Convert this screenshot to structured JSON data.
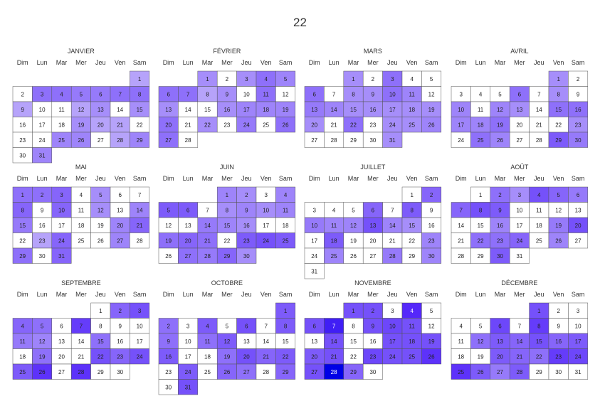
{
  "chart_data": {
    "type": "heatmap",
    "title": "22",
    "weekday_labels": [
      "Dim",
      "Lun",
      "Mar",
      "Mer",
      "Jeu",
      "Ven",
      "Sam"
    ],
    "color_scale": [
      "#ffffff",
      "#0000ee"
    ],
    "months": [
      {
        "name": "JANVIER",
        "first_weekday": 6,
        "days": 31,
        "levels": [
          0.2,
          0,
          0.45,
          0.45,
          0.4,
          0.4,
          0.45,
          0.45,
          0.2,
          0,
          0,
          0.2,
          0.3,
          0,
          0.3,
          0,
          0,
          0,
          0.3,
          0.2,
          0.2,
          0,
          0,
          0,
          0.35,
          0.35,
          0,
          0.2,
          0.35,
          0,
          0.35
        ]
      },
      {
        "name": "FÉVRIER",
        "first_weekday": 2,
        "days": 28,
        "levels": [
          0.3,
          0,
          0.3,
          0.45,
          0.35,
          0.45,
          0.45,
          0.2,
          0.3,
          0,
          0.45,
          0,
          0.3,
          0,
          0,
          0.3,
          0.35,
          0.35,
          0.35,
          0.45,
          0,
          0.3,
          0,
          0.4,
          0,
          0.45,
          0.45,
          0
        ]
      },
      {
        "name": "MARS",
        "first_weekday": 2,
        "days": 31,
        "levels": [
          0.3,
          0,
          0.45,
          0,
          0,
          0.45,
          0,
          0.3,
          0.3,
          0.45,
          0.35,
          0,
          0.4,
          0.35,
          0.3,
          0.3,
          0.3,
          0.3,
          0.3,
          0.3,
          0,
          0.45,
          0,
          0.3,
          0.3,
          0.35,
          0,
          0,
          0,
          0,
          0.3
        ]
      },
      {
        "name": "AVRIL",
        "first_weekday": 5,
        "days": 30,
        "levels": [
          0.3,
          0,
          0,
          0,
          0,
          0.45,
          0,
          0.3,
          0,
          0.35,
          0,
          0.35,
          0.3,
          0,
          0.45,
          0.45,
          0.35,
          0.35,
          0.45,
          0,
          0,
          0,
          0.3,
          0,
          0.45,
          0.35,
          0,
          0,
          0.55,
          0.4
        ]
      },
      {
        "name": "MAI",
        "first_weekday": 0,
        "days": 31,
        "levels": [
          0.45,
          0.45,
          0.5,
          0,
          0.3,
          0,
          0,
          0.5,
          0,
          0.5,
          0,
          0.3,
          0,
          0.35,
          0.4,
          0,
          0,
          0,
          0,
          0.35,
          0.5,
          0,
          0.2,
          0.5,
          0,
          0,
          0.35,
          0,
          0.45,
          0,
          0.5
        ]
      },
      {
        "name": "JUIN",
        "first_weekday": 3,
        "days": 30,
        "levels": [
          0.35,
          0.3,
          0,
          0.35,
          0.55,
          0.55,
          0,
          0.3,
          0.35,
          0.3,
          0.35,
          0,
          0,
          0.4,
          0.35,
          0.3,
          0,
          0,
          0.45,
          0.5,
          0.45,
          0,
          0.55,
          0.6,
          0.55,
          0,
          0.45,
          0.4,
          0.5,
          0.3
        ]
      },
      {
        "name": "JUILLET",
        "first_weekday": 5,
        "days": 31,
        "levels": [
          0,
          0.5,
          0,
          0,
          0,
          0.5,
          0,
          0.55,
          0,
          0.4,
          0.35,
          0.35,
          0.6,
          0.35,
          0.3,
          0,
          0,
          0.55,
          0,
          0,
          0,
          0,
          0.35,
          0,
          0.35,
          0,
          0,
          0.4,
          0,
          0.35,
          0
        ]
      },
      {
        "name": "AOÛT",
        "first_weekday": 1,
        "days": 31,
        "levels": [
          0,
          0.45,
          0.3,
          0.6,
          0.5,
          0.4,
          0.5,
          0.6,
          0.55,
          0,
          0,
          0,
          0,
          0,
          0,
          0.35,
          0,
          0,
          0.4,
          0.6,
          0,
          0.45,
          0.45,
          0.5,
          0,
          0.35,
          0,
          0,
          0,
          0.55,
          0
        ]
      },
      {
        "name": "SEPTEMBRE",
        "first_weekday": 4,
        "days": 30,
        "levels": [
          0,
          0.5,
          0.6,
          0.5,
          0.45,
          0,
          0.7,
          0,
          0,
          0,
          0.4,
          0.35,
          0,
          0,
          0.45,
          0,
          0,
          0,
          0.45,
          0,
          0,
          0.6,
          0.5,
          0.6,
          0.55,
          0.75,
          0,
          0.75,
          0,
          0
        ]
      },
      {
        "name": "OCTOBRE",
        "first_weekday": 6,
        "days": 31,
        "levels": [
          0.55,
          0.45,
          0,
          0.55,
          0,
          0.6,
          0,
          0.55,
          0.45,
          0,
          0.45,
          0.55,
          0,
          0,
          0,
          0.55,
          0,
          0,
          0.45,
          0.6,
          0.5,
          0.55,
          0,
          0.55,
          0,
          0.5,
          0.45,
          0,
          0.5,
          0,
          0.6
        ]
      },
      {
        "name": "NOVEMBRE",
        "first_weekday": 2,
        "days": 30,
        "levels": [
          0.6,
          0.6,
          0,
          0.8,
          0,
          0.6,
          0.85,
          0,
          0.6,
          0.65,
          0.6,
          0,
          0,
          0.6,
          0,
          0,
          0.6,
          0.6,
          0.6,
          0.55,
          0.6,
          0,
          0.65,
          0.6,
          0.6,
          0.75,
          0.6,
          1.0,
          0.5,
          0
        ]
      },
      {
        "name": "DÉCEMBRE",
        "first_weekday": 4,
        "days": 31,
        "levels": [
          0.6,
          0,
          0,
          0,
          0,
          0.65,
          0,
          0.7,
          0,
          0,
          0,
          0.45,
          0.55,
          0.5,
          0.6,
          0.5,
          0.55,
          0,
          0,
          0.55,
          0.5,
          0.45,
          0.7,
          0.65,
          0.75,
          0.55,
          0.4,
          0.55,
          0,
          0,
          0
        ]
      }
    ]
  }
}
